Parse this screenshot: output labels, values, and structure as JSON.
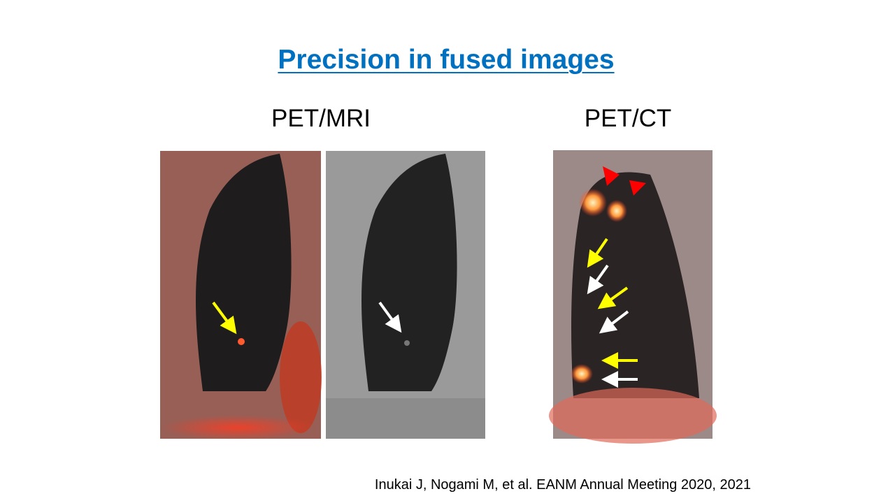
{
  "slide": {
    "title": "Precision in fused images",
    "panels": [
      {
        "label": "PET/MRI"
      },
      {
        "label": "PET/CT"
      }
    ],
    "citation": "Inukai J, Nogami M, et al. EANM Annual Meeting 2020, 2021"
  }
}
